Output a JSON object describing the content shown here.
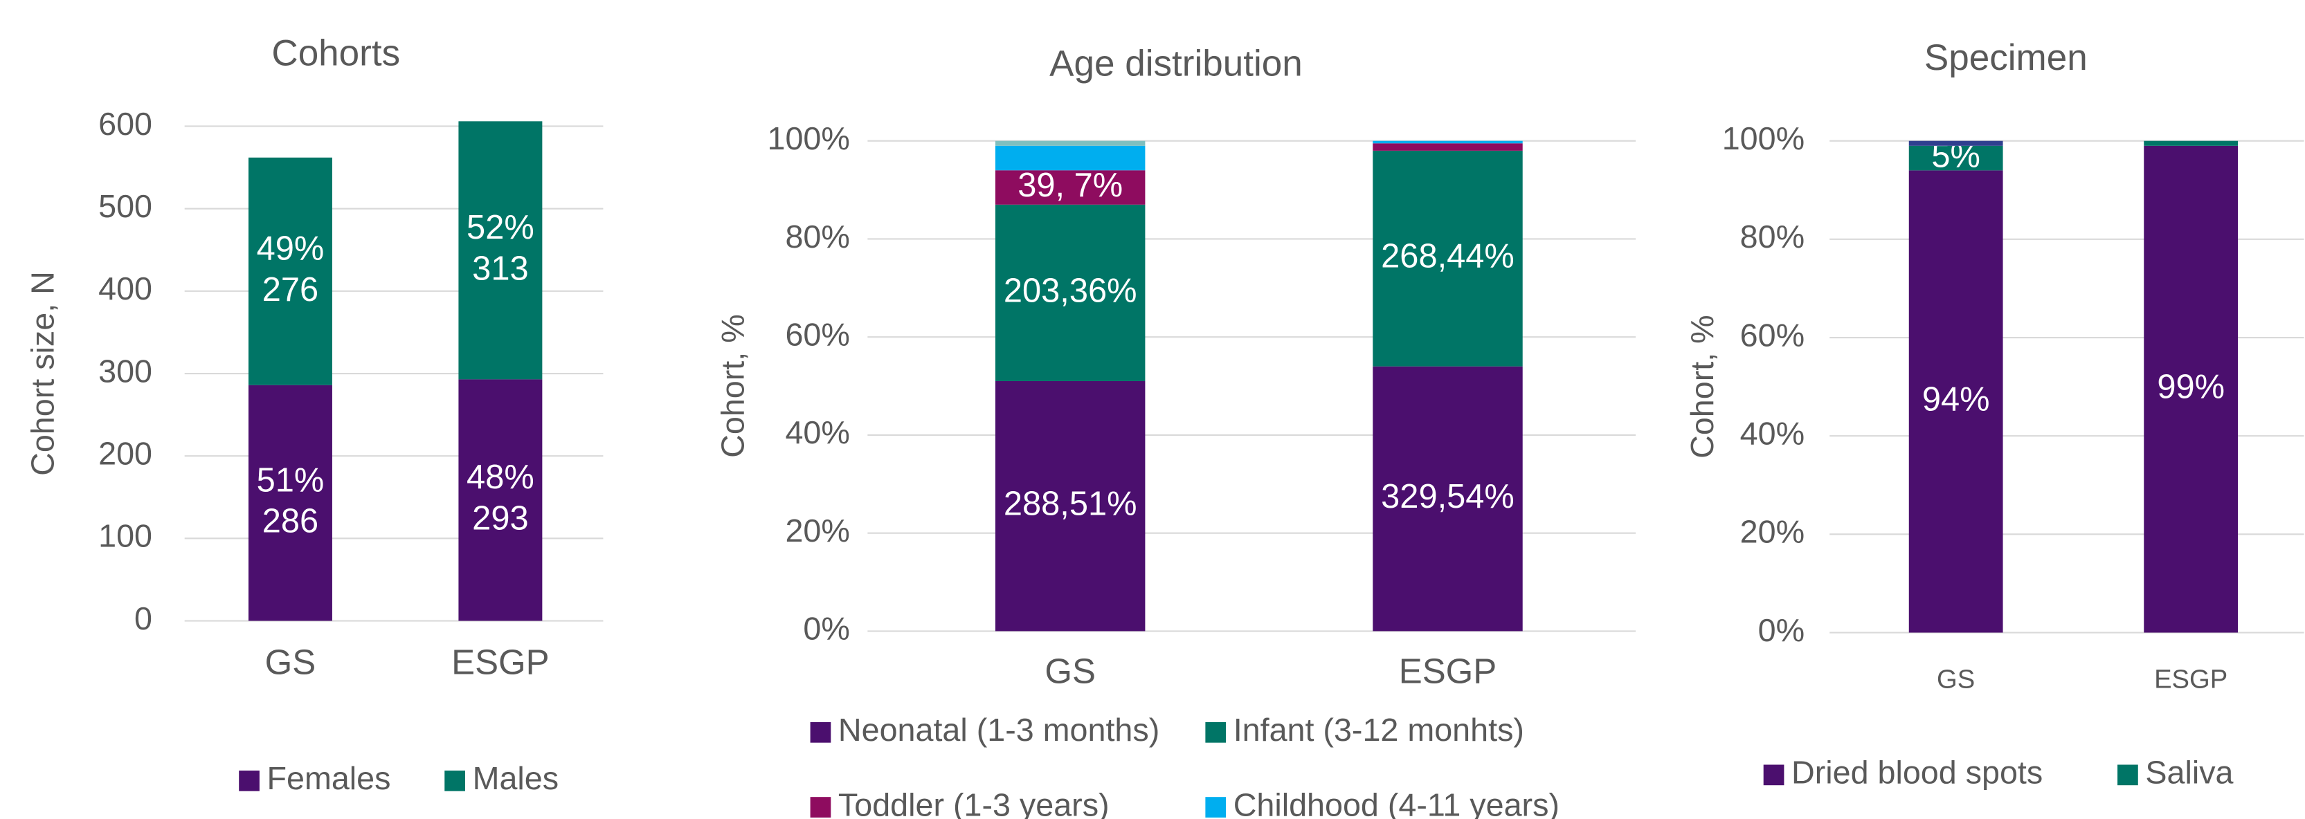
{
  "chart_data": [
    {
      "type": "bar",
      "stacked": true,
      "title": "Cohorts",
      "y_label": "Cohort size, N",
      "categories": [
        "GS",
        "ESGP"
      ],
      "series": [
        {
          "name": "Females",
          "color": "#4b0f6e",
          "values": [
            286,
            293
          ],
          "share_labels": [
            "51%",
            "48%"
          ]
        },
        {
          "name": "Males",
          "color": "#007566",
          "values": [
            276,
            313
          ],
          "share_labels": [
            "49%",
            "52%"
          ]
        }
      ],
      "ylim": [
        0,
        600
      ],
      "yticks": [
        0,
        100,
        200,
        300,
        400,
        500,
        600
      ],
      "grid": true
    },
    {
      "type": "bar",
      "stacked": true,
      "title": "Age distribution",
      "y_label": "Cohort, %",
      "categories": [
        "GS",
        "ESGP"
      ],
      "series": [
        {
          "name": "Neonatal (1-3 months)",
          "color": "#4b0f6e",
          "values": [
            51,
            54
          ],
          "value_labels": [
            "288,51%",
            "329,54%"
          ]
        },
        {
          "name": "Infant (3-12 monhts)",
          "color": "#007566",
          "values": [
            36,
            44
          ],
          "value_labels": [
            "203,36%",
            "268,44%"
          ]
        },
        {
          "name": "Toddler (1-3 years)",
          "color": "#8e0c5f",
          "values": [
            7,
            1.5
          ],
          "value_labels": [
            "39, 7%",
            null
          ]
        },
        {
          "name": "Childhood (4-11 years)",
          "color": "#00aeef",
          "values": [
            5,
            0.5
          ]
        },
        {
          "color": "#7fbfbf",
          "values": [
            1,
            0
          ]
        }
      ],
      "ylim": [
        0,
        100
      ],
      "yticks": [
        {
          "value": 0,
          "label": "0%"
        },
        {
          "value": 20,
          "label": "20%"
        },
        {
          "value": 40,
          "label": "40%"
        },
        {
          "value": 60,
          "label": "60%"
        },
        {
          "value": 80,
          "label": "80%"
        },
        {
          "value": 100,
          "label": "100%"
        }
      ],
      "grid": true
    },
    {
      "type": "bar",
      "stacked": true,
      "title": "Specimen",
      "y_label": "Cohort, %",
      "categories": [
        "GS",
        "ESGP"
      ],
      "series": [
        {
          "name": "Dried blood spots",
          "color": "#4b0f6e",
          "values": [
            94,
            99
          ],
          "value_labels": [
            "94%",
            "99%"
          ]
        },
        {
          "name": "Saliva",
          "color": "#007566",
          "values": [
            5,
            1
          ],
          "value_labels": [
            "5%",
            null
          ]
        },
        {
          "color": "#2f3f8f",
          "values": [
            1,
            0
          ]
        }
      ],
      "ylim": [
        0,
        100
      ],
      "yticks": [
        {
          "value": 0,
          "label": "0%"
        },
        {
          "value": 20,
          "label": "20%"
        },
        {
          "value": 40,
          "label": "40%"
        },
        {
          "value": 60,
          "label": "60%"
        },
        {
          "value": 80,
          "label": "80%"
        },
        {
          "value": 100,
          "label": "100%"
        }
      ],
      "grid": true
    }
  ]
}
